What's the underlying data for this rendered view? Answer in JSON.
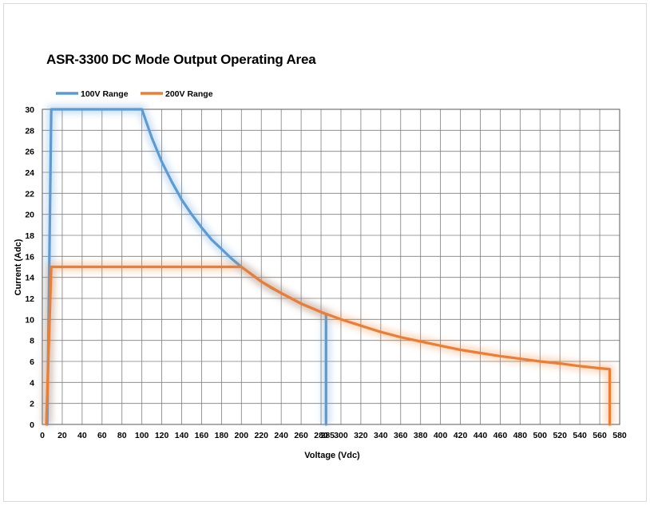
{
  "chart_data": {
    "type": "line",
    "title": "ASR-3300 DC Mode Output Operating Area",
    "xlabel": "Voltage (Vdc)",
    "ylabel": "Current (Adc)",
    "xlim": [
      0,
      580
    ],
    "ylim": [
      0,
      30
    ],
    "x_ticks": [
      0,
      20,
      40,
      60,
      80,
      100,
      120,
      140,
      160,
      180,
      200,
      220,
      240,
      260,
      280,
      300,
      320,
      340,
      360,
      380,
      400,
      420,
      440,
      460,
      480,
      500,
      520,
      540,
      560,
      580
    ],
    "y_ticks": [
      0,
      2,
      4,
      6,
      8,
      10,
      12,
      14,
      16,
      18,
      20,
      22,
      24,
      26,
      28,
      30
    ],
    "grid": true,
    "legend_position": "top-left",
    "annotation": "285",
    "series": [
      {
        "name": "100V Range",
        "color": "#5b9bd5",
        "points": [
          [
            5,
            0
          ],
          [
            9,
            30
          ],
          [
            100,
            30
          ],
          [
            110,
            27.3
          ],
          [
            120,
            25
          ],
          [
            130,
            23.1
          ],
          [
            140,
            21.4
          ],
          [
            150,
            20
          ],
          [
            160,
            18.75
          ],
          [
            170,
            17.6
          ],
          [
            180,
            16.7
          ],
          [
            190,
            15.8
          ],
          [
            200,
            15
          ],
          [
            210,
            14.3
          ],
          [
            220,
            13.6
          ],
          [
            230,
            13
          ],
          [
            240,
            12.5
          ],
          [
            250,
            12
          ],
          [
            260,
            11.5
          ],
          [
            270,
            11.1
          ],
          [
            285,
            10.5
          ],
          [
            285,
            0
          ]
        ]
      },
      {
        "name": "200V Range",
        "color": "#ed7d31",
        "points": [
          [
            4,
            0
          ],
          [
            9,
            15
          ],
          [
            200,
            15
          ],
          [
            220,
            13.6
          ],
          [
            240,
            12.5
          ],
          [
            260,
            11.5
          ],
          [
            280,
            10.7
          ],
          [
            300,
            10
          ],
          [
            320,
            9.4
          ],
          [
            340,
            8.8
          ],
          [
            360,
            8.3
          ],
          [
            380,
            7.9
          ],
          [
            400,
            7.5
          ],
          [
            420,
            7.1
          ],
          [
            440,
            6.8
          ],
          [
            460,
            6.5
          ],
          [
            480,
            6.25
          ],
          [
            500,
            6
          ],
          [
            520,
            5.8
          ],
          [
            540,
            5.55
          ],
          [
            560,
            5.35
          ],
          [
            570,
            5.26
          ],
          [
            570,
            0
          ]
        ]
      }
    ]
  }
}
